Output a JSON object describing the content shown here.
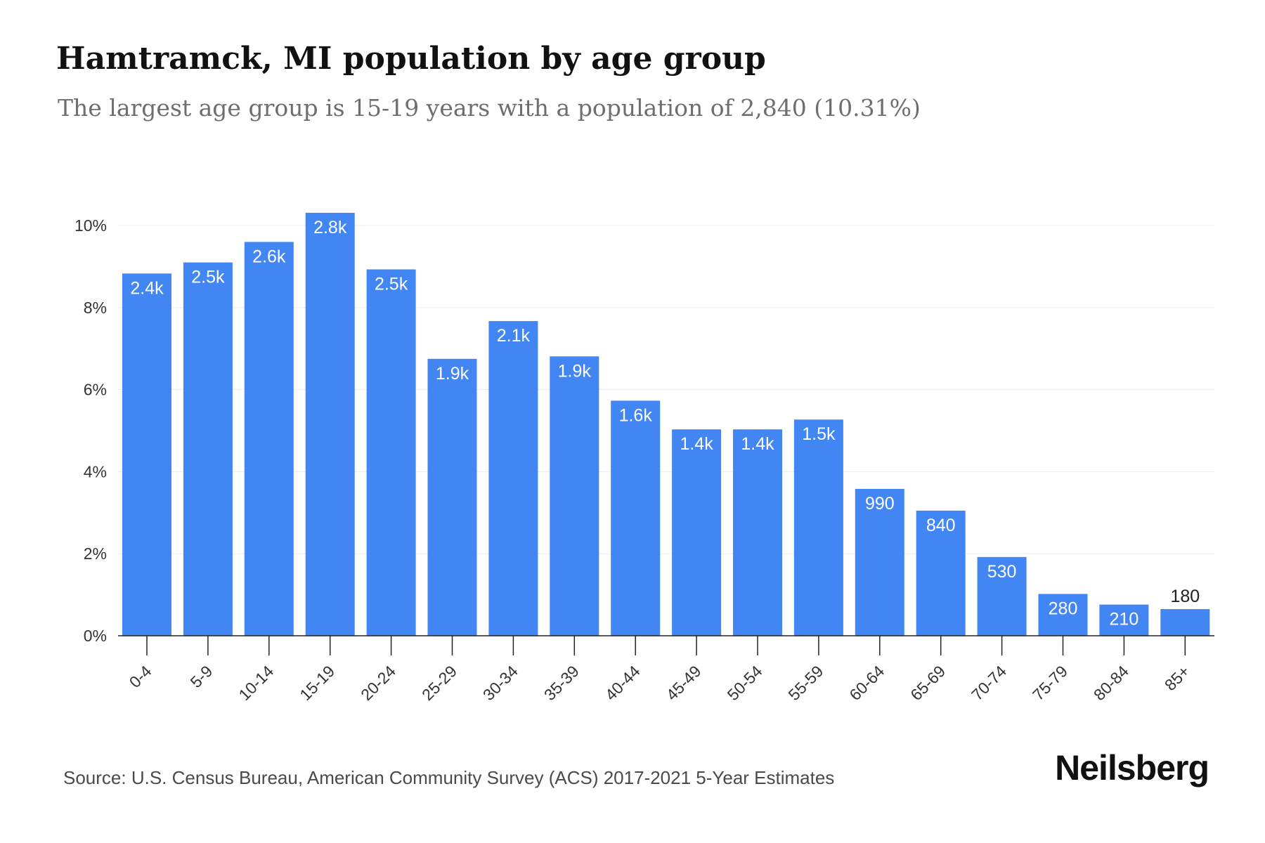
{
  "header": {
    "title": "Hamtramck, MI population by age group",
    "subtitle": "The largest age group is 15-19 years with a population of 2,840 (10.31%)"
  },
  "footer": {
    "source": "Source: U.S. Census Bureau, American Community Survey (ACS) 2017-2021 5-Year Estimates",
    "brand": "Neilsberg"
  },
  "colors": {
    "bar": "#4286f4",
    "grid": "#ececec",
    "axis": "#222222",
    "label_inside": "#ffffff",
    "label_outside": "#222222"
  },
  "chart_data": {
    "type": "bar",
    "categories": [
      "0-4",
      "5-9",
      "10-14",
      "15-19",
      "20-24",
      "25-29",
      "30-34",
      "35-39",
      "40-44",
      "45-49",
      "50-54",
      "55-59",
      "60-64",
      "65-69",
      "70-74",
      "75-79",
      "80-84",
      "85+"
    ],
    "values": [
      8.83,
      9.1,
      9.6,
      10.31,
      8.93,
      6.75,
      7.67,
      6.81,
      5.73,
      5.03,
      5.03,
      5.27,
      3.58,
      3.05,
      1.92,
      1.02,
      0.76,
      0.65
    ],
    "data_labels": [
      "2.4k",
      "2.5k",
      "2.6k",
      "2.8k",
      "2.5k",
      "1.9k",
      "2.1k",
      "1.9k",
      "1.6k",
      "1.4k",
      "1.4k",
      "1.5k",
      "990",
      "840",
      "530",
      "280",
      "210",
      "180"
    ],
    "yticks": [
      0,
      2,
      4,
      6,
      8,
      10
    ],
    "ytick_labels": [
      "0%",
      "2%",
      "4%",
      "6%",
      "8%",
      "10%"
    ],
    "ylim": [
      0,
      10.5
    ],
    "grid": true,
    "legend": "none",
    "title": "Hamtramck, MI population by age group",
    "xlabel": "",
    "ylabel": ""
  }
}
